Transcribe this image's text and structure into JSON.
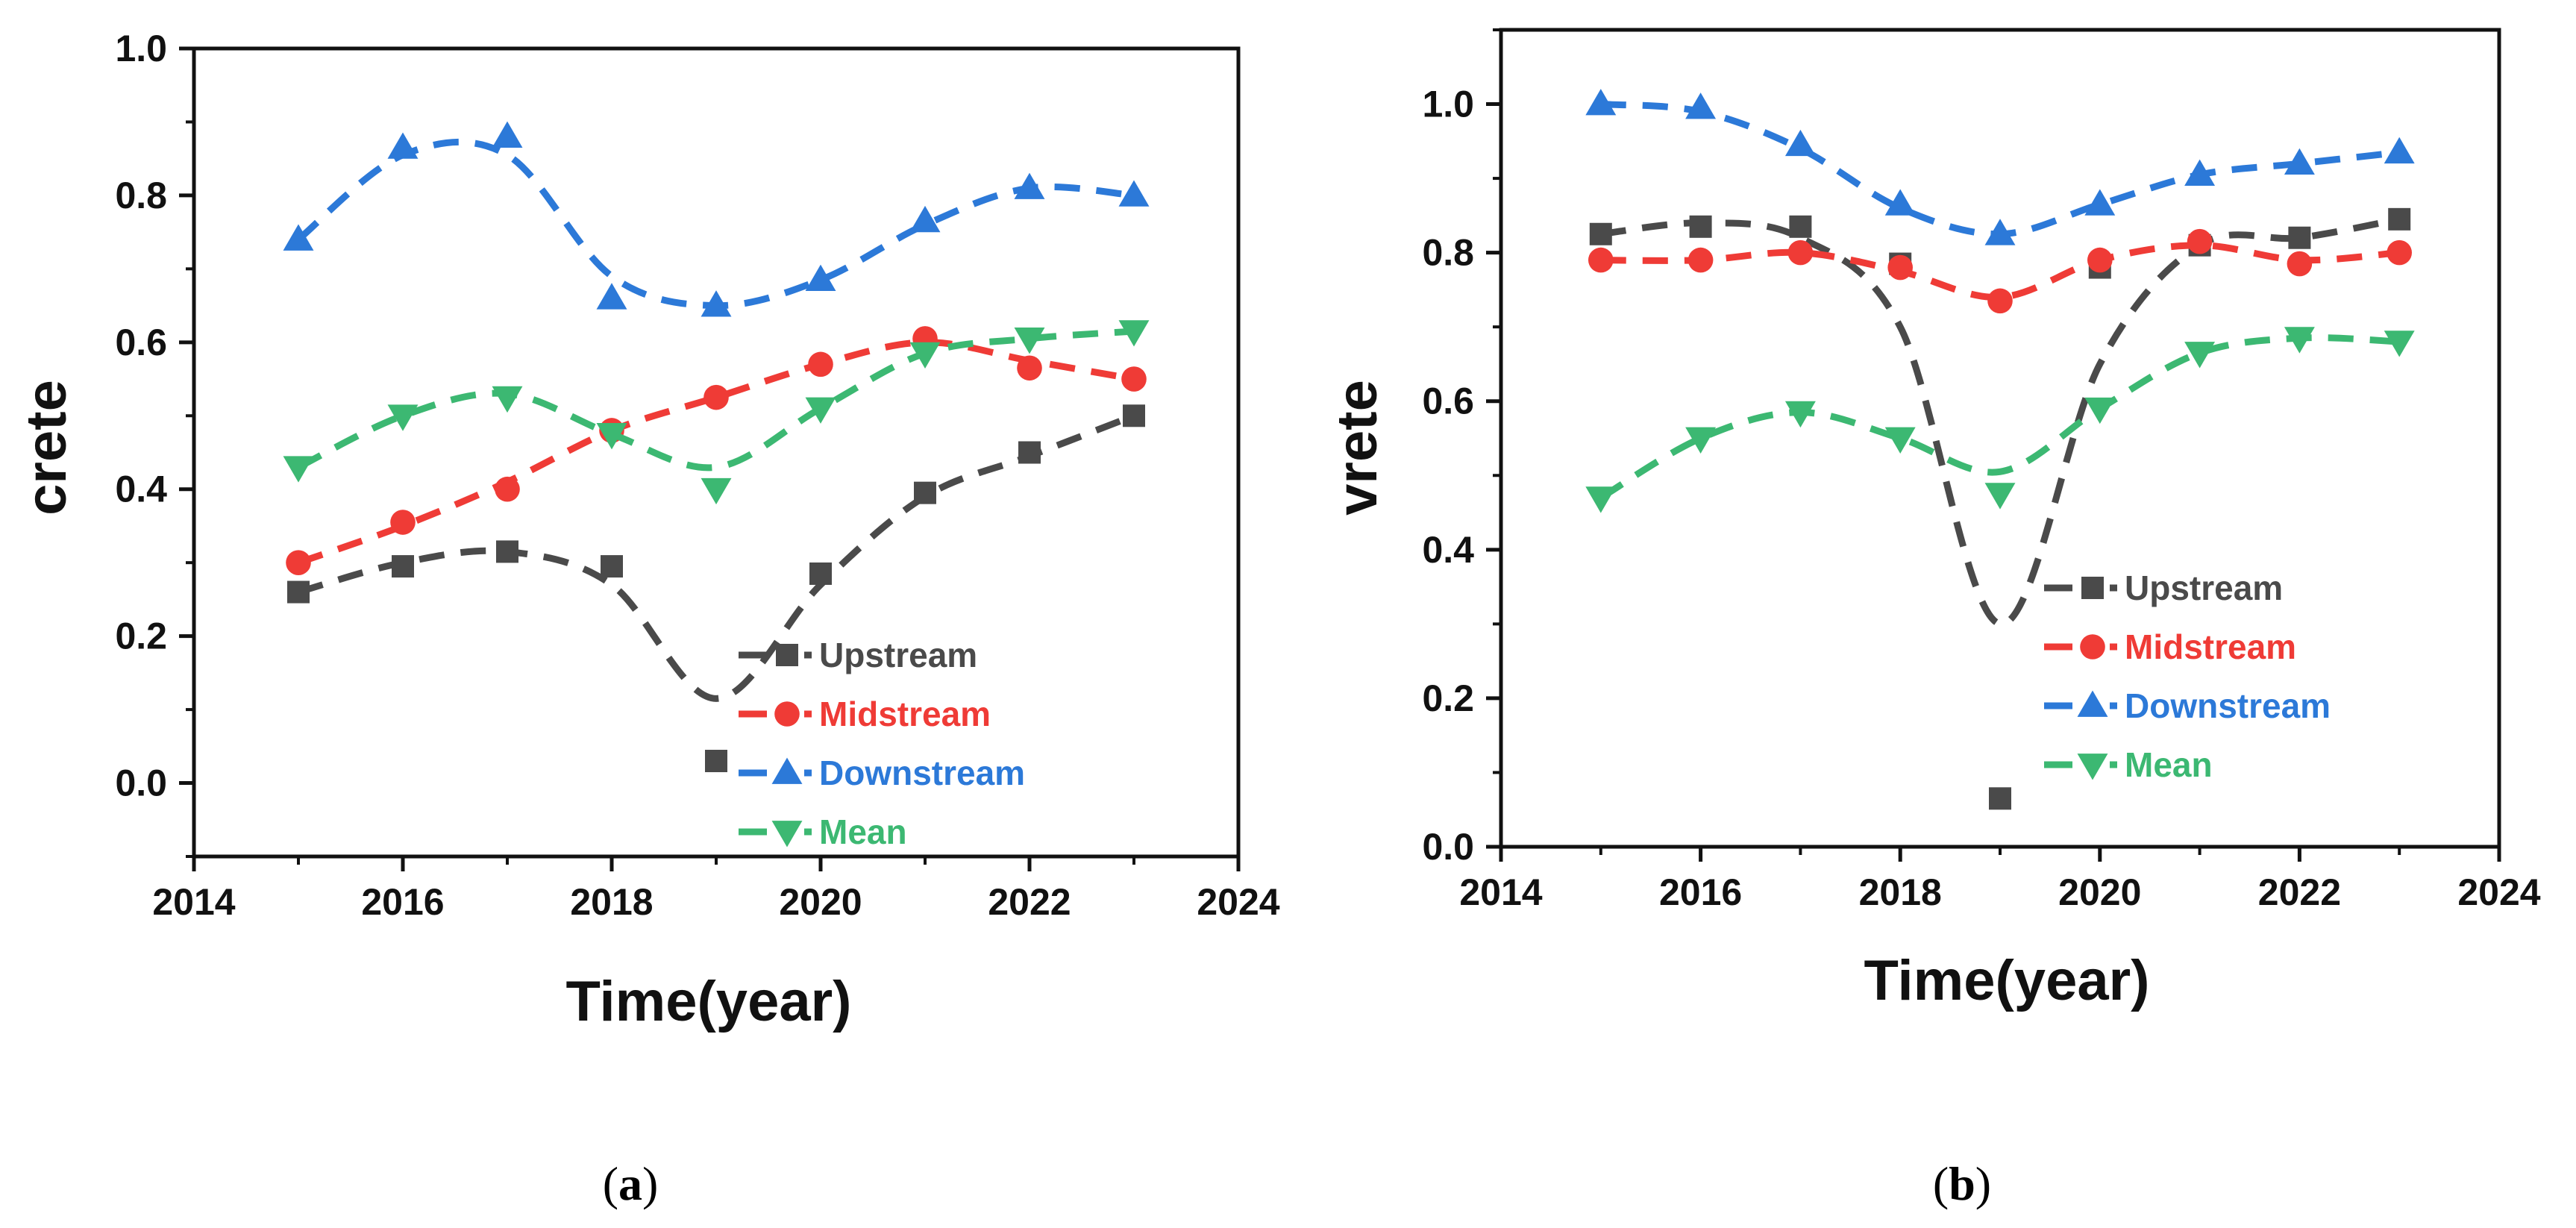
{
  "chart_data": [
    {
      "type": "line",
      "panel": "a",
      "xlabel": "Time(year)",
      "ylabel": "crete",
      "xlim": [
        2014,
        2024
      ],
      "ylim": [
        -0.1,
        1.0
      ],
      "xticks": [
        2014,
        2016,
        2018,
        2020,
        2022,
        2024
      ],
      "yticks": [
        0.0,
        0.2,
        0.4,
        0.6,
        0.8,
        1.0
      ],
      "xtick_labels": [
        "2014",
        "2016",
        "2018",
        "2020",
        "2022",
        "2024"
      ],
      "ytick_labels": [
        "0.0",
        "0.2",
        "0.4",
        "0.6",
        "0.8",
        "1.0"
      ],
      "x": [
        2015,
        2016,
        2017,
        2018,
        2019,
        2020,
        2021,
        2022,
        2023
      ],
      "series": [
        {
          "name": "Upstream",
          "color": "#4a4a4a",
          "marker": "square",
          "values": [
            0.26,
            0.295,
            0.315,
            0.295,
            0.03,
            0.285,
            0.395,
            0.45,
            0.5
          ],
          "fit": [
            0.26,
            0.3,
            0.315,
            0.27,
            0.115,
            0.27,
            0.39,
            0.445,
            0.5
          ]
        },
        {
          "name": "Midstream",
          "color": "#ef3b36",
          "marker": "circle",
          "values": [
            0.3,
            0.355,
            0.4,
            0.48,
            0.525,
            0.57,
            0.605,
            0.565,
            0.55
          ],
          "fit": [
            0.3,
            0.35,
            0.41,
            0.48,
            0.525,
            0.57,
            0.6,
            0.575,
            0.55
          ]
        },
        {
          "name": "Downstream",
          "color": "#2c79d8",
          "marker": "triangle-up",
          "values": [
            0.74,
            0.865,
            0.88,
            0.66,
            0.65,
            0.685,
            0.765,
            0.81,
            0.8
          ],
          "fit": [
            0.74,
            0.855,
            0.855,
            0.69,
            0.65,
            0.685,
            0.76,
            0.81,
            0.8
          ]
        },
        {
          "name": "Mean",
          "color": "#3cb872",
          "marker": "triangle-down",
          "values": [
            0.43,
            0.5,
            0.525,
            0.475,
            0.4,
            0.51,
            0.585,
            0.605,
            0.615
          ],
          "fit": [
            0.43,
            0.5,
            0.53,
            0.475,
            0.43,
            0.51,
            0.585,
            0.605,
            0.615
          ]
        }
      ],
      "legend": "lower-right",
      "panel_label": "a"
    },
    {
      "type": "line",
      "panel": "b",
      "xlabel": "Time(year)",
      "ylabel": "vrete",
      "xlim": [
        2014,
        2024
      ],
      "ylim": [
        0.0,
        1.1
      ],
      "xticks": [
        2014,
        2016,
        2018,
        2020,
        2022,
        2024
      ],
      "yticks": [
        0.0,
        0.2,
        0.4,
        0.6,
        0.8,
        1.0
      ],
      "xtick_labels": [
        "2014",
        "2016",
        "2018",
        "2020",
        "2022",
        "2024"
      ],
      "ytick_labels": [
        "0.0",
        "0.2",
        "0.4",
        "0.6",
        "0.8",
        "1.0"
      ],
      "x": [
        2015,
        2016,
        2017,
        2018,
        2019,
        2020,
        2021,
        2022,
        2023
      ],
      "series": [
        {
          "name": "Upstream",
          "color": "#4a4a4a",
          "marker": "square",
          "values": [
            0.825,
            0.835,
            0.835,
            0.785,
            0.065,
            0.78,
            0.81,
            0.82,
            0.845
          ],
          "fit": [
            0.825,
            0.84,
            0.82,
            0.7,
            0.3,
            0.65,
            0.81,
            0.82,
            0.845
          ]
        },
        {
          "name": "Midstream",
          "color": "#ef3b36",
          "marker": "circle",
          "values": [
            0.79,
            0.79,
            0.8,
            0.78,
            0.735,
            0.79,
            0.815,
            0.785,
            0.8
          ],
          "fit": [
            0.79,
            0.79,
            0.8,
            0.775,
            0.74,
            0.79,
            0.81,
            0.79,
            0.8
          ]
        },
        {
          "name": "Downstream",
          "color": "#2c79d8",
          "marker": "triangle-up",
          "values": [
            1.0,
            0.995,
            0.945,
            0.865,
            0.825,
            0.865,
            0.905,
            0.92,
            0.935
          ],
          "fit": [
            1.0,
            0.99,
            0.94,
            0.86,
            0.825,
            0.865,
            0.905,
            0.92,
            0.935
          ]
        },
        {
          "name": "Mean",
          "color": "#3cb872",
          "marker": "triangle-down",
          "values": [
            0.47,
            0.55,
            0.585,
            0.55,
            0.475,
            0.59,
            0.665,
            0.685,
            0.68
          ],
          "fit": [
            0.47,
            0.55,
            0.585,
            0.55,
            0.505,
            0.59,
            0.665,
            0.685,
            0.68
          ]
        }
      ],
      "legend": "lower-right",
      "panel_label": "b"
    }
  ]
}
